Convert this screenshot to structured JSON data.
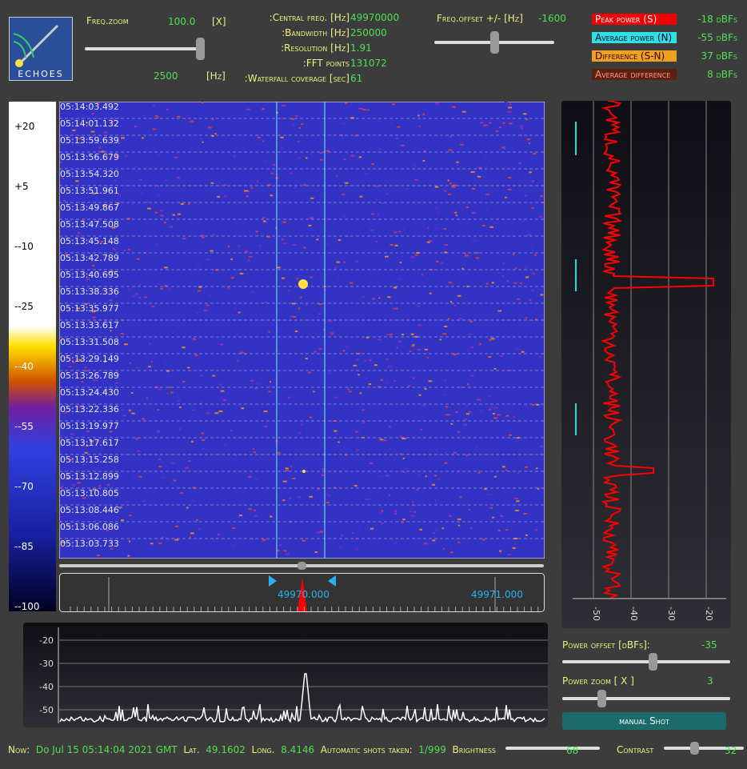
{
  "header": {
    "logo": "ECHOES",
    "freq_zoom": {
      "label": "Freq.zoom",
      "value": "100.0",
      "unit": "[X]",
      "span": "2500",
      "span_unit": "[Hz]"
    },
    "info": [
      [
        "Central freq. [Hz]:",
        "49970000"
      ],
      [
        "Bandwidth  [Hz]:",
        "250000"
      ],
      [
        "Resolution [Hz]:",
        "1.91"
      ],
      [
        "FFT points:",
        "131072"
      ],
      [
        "Waterfall coverage [sec]:",
        "61"
      ]
    ],
    "freq_offset": {
      "label": "Freq.offset +/- [Hz]",
      "value": "-1600"
    },
    "powers": [
      [
        "Peak power (S)",
        "-18 dBFs"
      ],
      [
        "Average power (N)",
        "-55 dBFs"
      ],
      [
        "Difference (S-N)",
        "37 dBFs"
      ],
      [
        "Average difference",
        "8 dBFs"
      ]
    ]
  },
  "color_scale": [
    "+20",
    "+5",
    "--10",
    "--25",
    "--40",
    "--55",
    "--70",
    "--85",
    "--100"
  ],
  "timestamps": [
    "05:14:03.492",
    "05:14:01.132",
    "05:13:59.639",
    "05:13:56.679",
    "05:13:54.320",
    "05:13:51.961",
    "05:13:49.867",
    "05:13:47.508",
    "05:13:45.148",
    "05:13:42.789",
    "05:13:40.695",
    "05:13:38.336",
    "05:13:35.977",
    "05:13:33.617",
    "05:13:31.508",
    "05:13:29.149",
    "05:13:26.789",
    "05:13:24.430",
    "05:13:22.336",
    "05:13:19.977",
    "05:13:17.617",
    "05:13:15.258",
    "05:13:12.899",
    "05:13:10.805",
    "05:13:08.446",
    "05:13:06.086",
    "05:13:03.733"
  ],
  "freq_ruler": [
    "49970.000",
    "49971.000"
  ],
  "power_axis": [
    "-50",
    "-40",
    "-30",
    "-20"
  ],
  "spectrum_axis": [
    "-20",
    "-30",
    "-40",
    "-50"
  ],
  "controls": {
    "power_offset": {
      "label": "Power offset [dBFs]:",
      "value": "-35"
    },
    "power_zoom": {
      "label": "Power zoom  [ X ]",
      "value": "3"
    },
    "button": "manual Shot"
  },
  "footer": {
    "now_label": "Now:",
    "now": "Do Jul 15 05:14:04 2021 GMT",
    "lat_label": "Lat.",
    "lat": "49.1602",
    "long_label": "Long.",
    "long": "8.4146",
    "shots_label": "Automatic shots taken:",
    "shots": "1/999",
    "brightness_label": "Brightness",
    "brightness": "68",
    "contrast_label": "Contrast",
    "contrast": "32"
  }
}
